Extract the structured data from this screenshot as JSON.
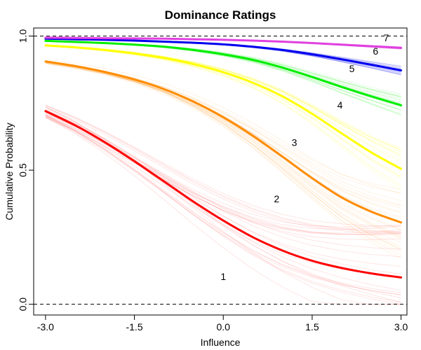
{
  "chart_data": {
    "type": "line",
    "title": "Dominance Ratings",
    "xlabel": "Influence",
    "ylabel": "Cumulative Probability",
    "xlim": [
      -3.2,
      3.1
    ],
    "ylim": [
      -0.04,
      1.03
    ],
    "x_ticks": [
      {
        "value": -3.0,
        "label": "-3.0"
      },
      {
        "value": -1.5,
        "label": "-1.5"
      },
      {
        "value": 0.0,
        "label": "0.0"
      },
      {
        "value": 1.5,
        "label": "1.5"
      },
      {
        "value": 3.0,
        "label": "3.0"
      }
    ],
    "y_ticks": [
      {
        "value": 0.0,
        "label": "0.0"
      },
      {
        "value": 0.5,
        "label": "0.5"
      },
      {
        "value": 1.0,
        "label": "1.0"
      }
    ],
    "reference_lines": [
      0.0,
      1.0
    ],
    "grid": false,
    "legend": "none",
    "x": [
      -3.0,
      -2.5,
      -2.0,
      -1.5,
      -1.0,
      -0.5,
      0.0,
      0.5,
      1.0,
      1.5,
      2.0,
      2.5,
      3.0
    ],
    "series": [
      {
        "color": "#ff0000",
        "values": [
          0.72,
          0.667,
          0.604,
          0.533,
          0.458,
          0.382,
          0.312,
          0.25,
          0.2,
          0.162,
          0.135,
          0.115,
          0.1
        ]
      },
      {
        "color": "#ff8c00",
        "values": [
          0.905,
          0.888,
          0.866,
          0.838,
          0.802,
          0.755,
          0.697,
          0.628,
          0.55,
          0.47,
          0.398,
          0.345,
          0.305
        ]
      },
      {
        "color": "#ffff00",
        "values": [
          0.965,
          0.958,
          0.948,
          0.935,
          0.918,
          0.895,
          0.865,
          0.826,
          0.775,
          0.71,
          0.637,
          0.566,
          0.505
        ]
      },
      {
        "color": "#00ee00",
        "values": [
          0.982,
          0.978,
          0.974,
          0.968,
          0.96,
          0.948,
          0.932,
          0.911,
          0.882,
          0.847,
          0.81,
          0.775,
          0.742
        ]
      },
      {
        "color": "#0000ee",
        "values": [
          0.99,
          0.988,
          0.986,
          0.983,
          0.979,
          0.975,
          0.969,
          0.96,
          0.948,
          0.932,
          0.913,
          0.893,
          0.872
        ]
      },
      {
        "color": "#e040e0",
        "values": [
          0.994,
          0.993,
          0.992,
          0.991,
          0.99,
          0.988,
          0.986,
          0.983,
          0.979,
          0.974,
          0.968,
          0.962,
          0.956
        ]
      }
    ],
    "category_labels": [
      {
        "text": "1",
        "x": 0.0,
        "y": 0.1
      },
      {
        "text": "2",
        "x": 0.9,
        "y": 0.39
      },
      {
        "text": "3",
        "x": 1.2,
        "y": 0.6
      },
      {
        "text": "4",
        "x": 1.97,
        "y": 0.74
      },
      {
        "text": "5",
        "x": 2.17,
        "y": 0.875
      },
      {
        "text": "6",
        "x": 2.57,
        "y": 0.94
      },
      {
        "text": "7",
        "x": 2.75,
        "y": 0.99
      }
    ]
  }
}
